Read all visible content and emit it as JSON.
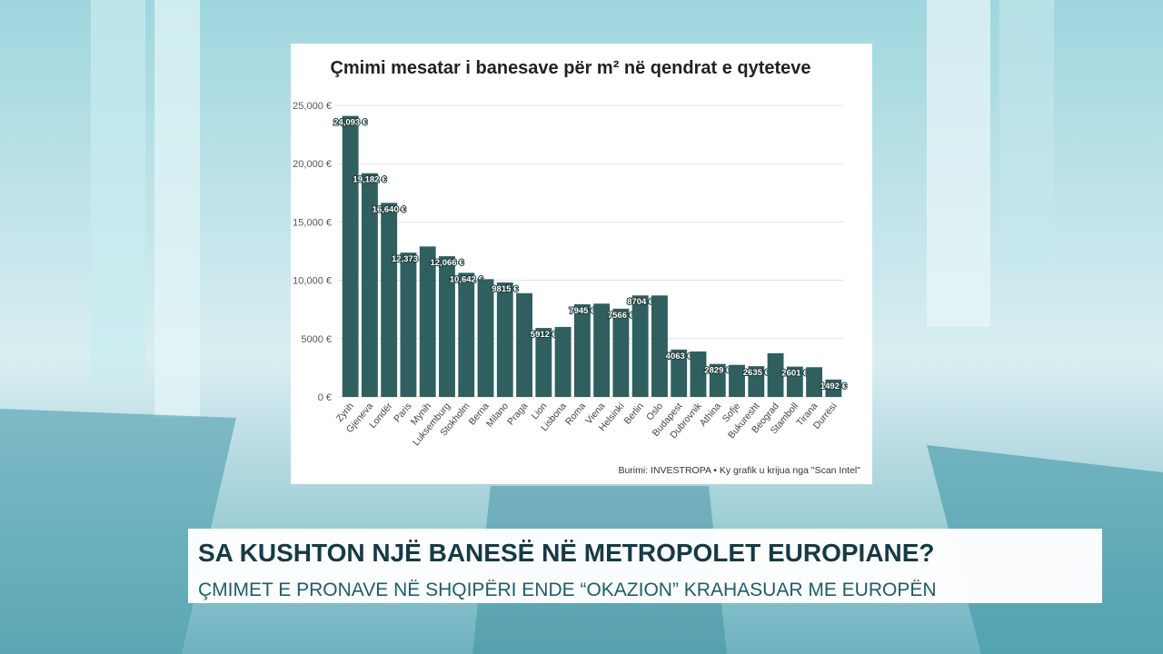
{
  "chart_data": {
    "type": "bar",
    "title": "Çmimi mesatar i banesave për m² në qendrat e qyteteve",
    "source": "Burimi: INVESTROPA • Ky grafik u krijua nga \"Scan Intel\"",
    "categories": [
      "Zyrih",
      "Gjeneva",
      "Londër",
      "Paris",
      "Mynih",
      "Luksemburg",
      "Stokholm",
      "Berna",
      "Milano",
      "Praga",
      "Lion",
      "Lisbona",
      "Roma",
      "Viena",
      "Helsinki",
      "Berlin",
      "Oslo",
      "Budapest",
      "Dubrovnik",
      "Athina",
      "Sofje",
      "Bukuresht",
      "Beograd",
      "Stamboll",
      "Tirana",
      "Durrësi"
    ],
    "values": [
      24093,
      19182,
      16640,
      12373,
      12900,
      12066,
      10642,
      10100,
      9815,
      8900,
      5912,
      6000,
      7945,
      8000,
      7566,
      8704,
      8700,
      4063,
      3900,
      2829,
      2750,
      2635,
      3750,
      2601,
      2550,
      1492
    ],
    "value_labels": [
      "24,093 €",
      "19,182 €",
      "16,640 €",
      "12,373 €",
      null,
      "12,066 €",
      "10,642 €",
      null,
      "9815 €",
      null,
      "5912 €",
      null,
      "7945 €",
      null,
      "7566 €",
      "8704 €",
      null,
      "4063 €",
      null,
      "2829 €",
      null,
      "2635 €",
      null,
      "2601 €",
      null,
      "1492 €"
    ],
    "color": "#2f5f5f",
    "ylim": [
      0,
      25000
    ],
    "yticks": [
      {
        "value": 0,
        "label": "0 €"
      },
      {
        "value": 5000,
        "label": "5000 €"
      },
      {
        "value": 10000,
        "label": "10,000 €"
      },
      {
        "value": 15000,
        "label": "15,000 €"
      },
      {
        "value": 20000,
        "label": "20,000 €"
      },
      {
        "value": 25000,
        "label": "25,000 €"
      }
    ],
    "grid": true
  },
  "banner": {
    "headline": "SA KUSHTON NJË BANESË NË METROPOLET EUROPIANE?",
    "subheadline": "ÇMIMET E PRONAVE NË SHQIPËRI ENDE “OKAZION” KRAHASUAR ME EUROPËN"
  }
}
